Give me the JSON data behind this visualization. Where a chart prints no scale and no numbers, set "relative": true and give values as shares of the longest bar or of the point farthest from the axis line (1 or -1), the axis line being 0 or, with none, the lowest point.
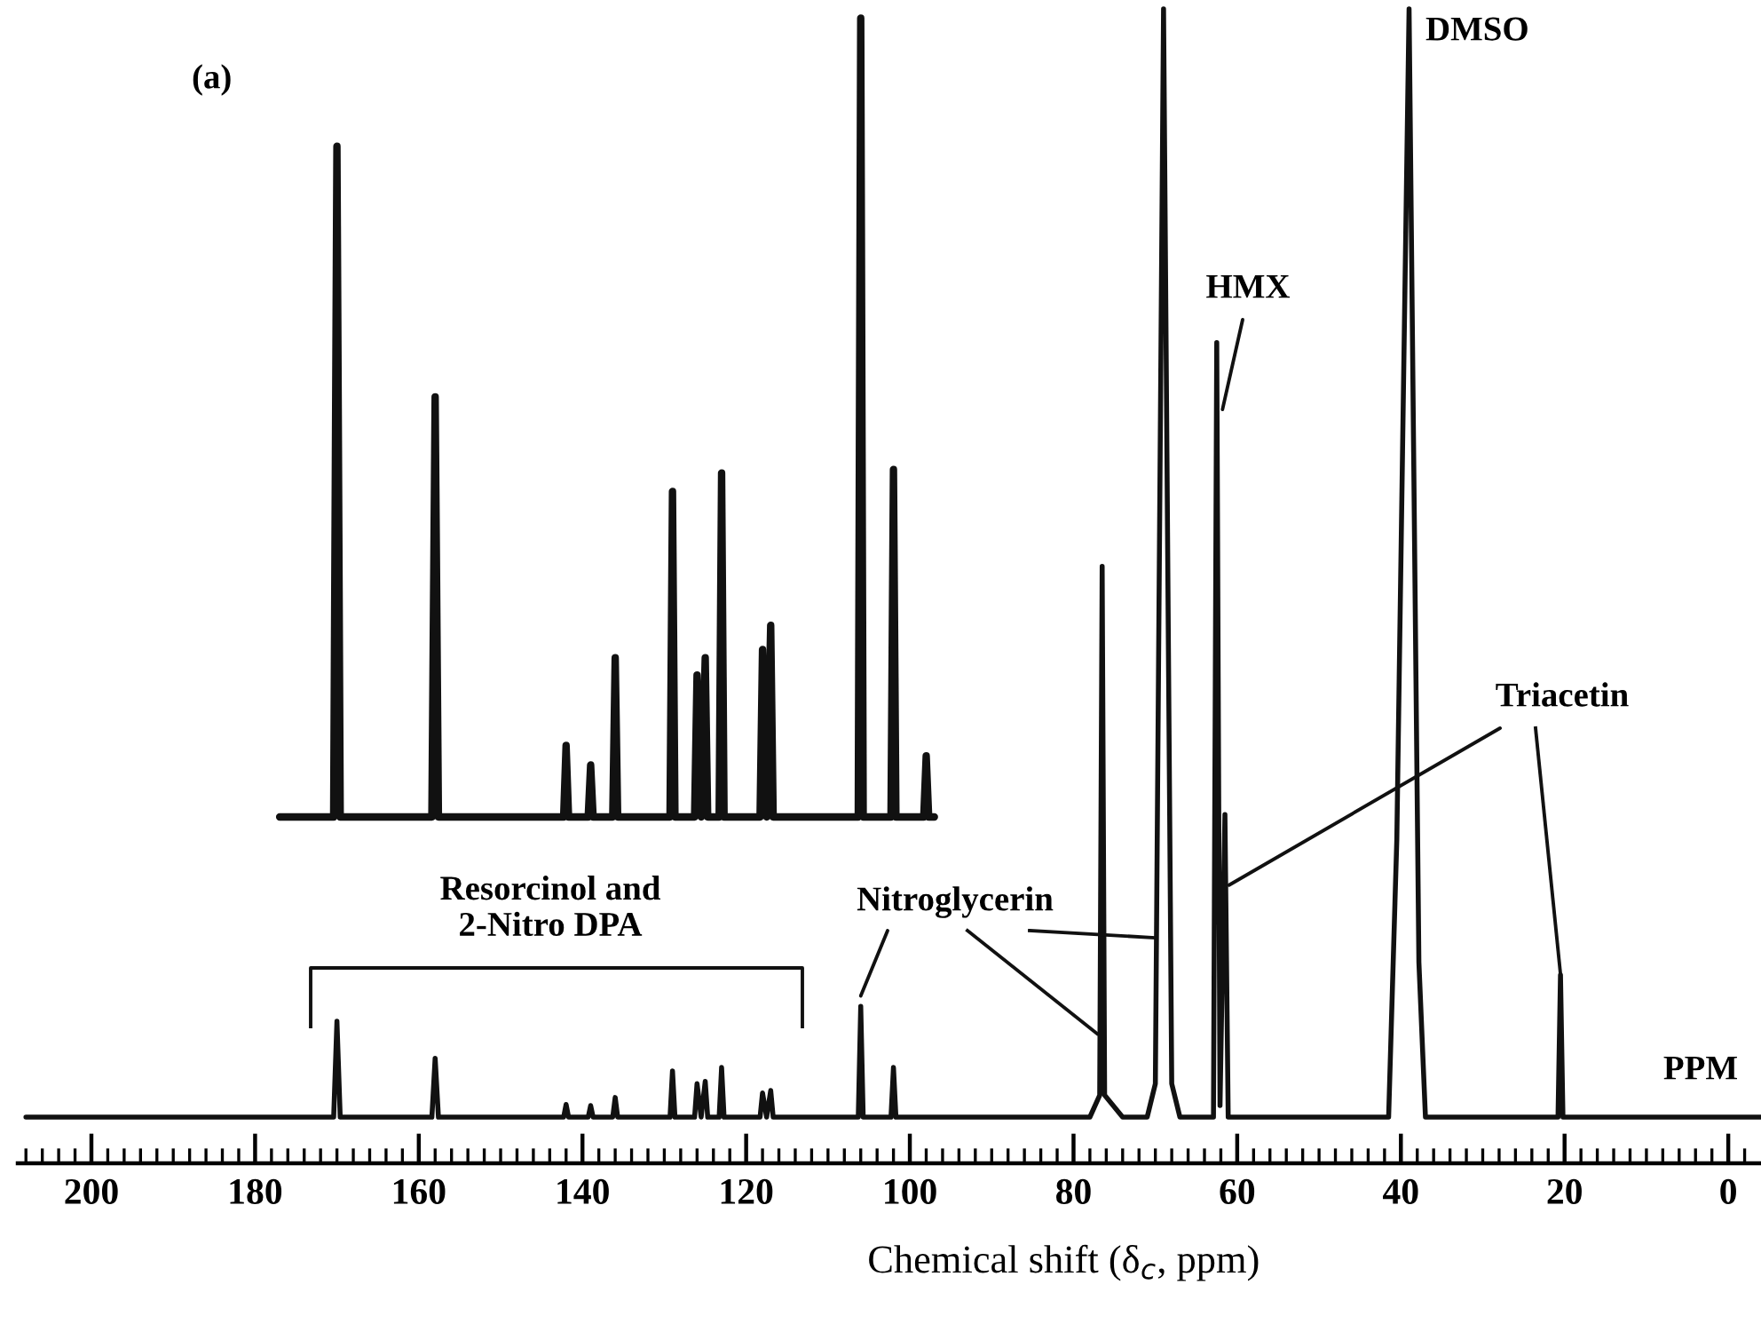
{
  "chart_data": {
    "type": "line",
    "relative": true,
    "xlabel": "Chemical shift (δ$_{c}$, ppm)",
    "xlim": [
      209,
      -4
    ],
    "tick_labels": "x",
    "xticks": [
      200,
      180,
      160,
      140,
      120,
      100,
      80,
      60,
      40,
      20,
      0,
      {
        "value": 208,
        "label": null
      },
      {
        "value": 206,
        "label": null
      },
      {
        "value": 204,
        "label": null
      },
      {
        "value": 202,
        "label": null
      },
      {
        "value": 198,
        "label": null
      },
      {
        "value": 196,
        "label": null
      },
      {
        "value": 194,
        "label": null
      },
      {
        "value": 192,
        "label": null
      },
      {
        "value": 190,
        "label": null
      },
      {
        "value": 188,
        "label": null
      },
      {
        "value": 186,
        "label": null
      },
      {
        "value": 184,
        "label": null
      },
      {
        "value": 182,
        "label": null
      },
      {
        "value": 178,
        "label": null
      },
      {
        "value": 176,
        "label": null
      },
      {
        "value": 174,
        "label": null
      },
      {
        "value": 172,
        "label": null
      },
      {
        "value": 170,
        "label": null
      },
      {
        "value": 168,
        "label": null
      },
      {
        "value": 166,
        "label": null
      },
      {
        "value": 164,
        "label": null
      },
      {
        "value": 162,
        "label": null
      },
      {
        "value": 158,
        "label": null
      },
      {
        "value": 156,
        "label": null
      },
      {
        "value": 154,
        "label": null
      },
      {
        "value": 152,
        "label": null
      },
      {
        "value": 150,
        "label": null
      },
      {
        "value": 148,
        "label": null
      },
      {
        "value": 146,
        "label": null
      },
      {
        "value": 144,
        "label": null
      },
      {
        "value": 142,
        "label": null
      },
      {
        "value": 138,
        "label": null
      },
      {
        "value": 136,
        "label": null
      },
      {
        "value": 134,
        "label": null
      },
      {
        "value": 132,
        "label": null
      },
      {
        "value": 130,
        "label": null
      },
      {
        "value": 128,
        "label": null
      },
      {
        "value": 126,
        "label": null
      },
      {
        "value": 124,
        "label": null
      },
      {
        "value": 122,
        "label": null
      },
      {
        "value": 118,
        "label": null
      },
      {
        "value": 116,
        "label": null
      },
      {
        "value": 114,
        "label": null
      },
      {
        "value": 112,
        "label": null
      },
      {
        "value": 110,
        "label": null
      },
      {
        "value": 108,
        "label": null
      },
      {
        "value": 106,
        "label": null
      },
      {
        "value": 104,
        "label": null
      },
      {
        "value": 102,
        "label": null
      },
      {
        "value": 98,
        "label": null
      },
      {
        "value": 96,
        "label": null
      },
      {
        "value": 94,
        "label": null
      },
      {
        "value": 92,
        "label": null
      },
      {
        "value": 90,
        "label": null
      },
      {
        "value": 88,
        "label": null
      },
      {
        "value": 86,
        "label": null
      },
      {
        "value": 84,
        "label": null
      },
      {
        "value": 82,
        "label": null
      },
      {
        "value": 78,
        "label": null
      },
      {
        "value": 76,
        "label": null
      },
      {
        "value": 74,
        "label": null
      },
      {
        "value": 72,
        "label": null
      },
      {
        "value": 70,
        "label": null
      },
      {
        "value": 68,
        "label": null
      },
      {
        "value": 66,
        "label": null
      },
      {
        "value": 64,
        "label": null
      },
      {
        "value": 62,
        "label": null
      },
      {
        "value": 58,
        "label": null
      },
      {
        "value": 56,
        "label": null
      },
      {
        "value": 54,
        "label": null
      },
      {
        "value": 52,
        "label": null
      },
      {
        "value": 50,
        "label": null
      },
      {
        "value": 48,
        "label": null
      },
      {
        "value": 46,
        "label": null
      },
      {
        "value": 44,
        "label": null
      },
      {
        "value": 42,
        "label": null
      },
      {
        "value": 38,
        "label": null
      },
      {
        "value": 36,
        "label": null
      },
      {
        "value": 34,
        "label": null
      },
      {
        "value": 32,
        "label": null
      },
      {
        "value": 30,
        "label": null
      },
      {
        "value": 28,
        "label": null
      },
      {
        "value": 26,
        "label": null
      },
      {
        "value": 24,
        "label": null
      },
      {
        "value": 22,
        "label": null
      },
      {
        "value": 18,
        "label": null
      },
      {
        "value": 16,
        "label": null
      },
      {
        "value": 14,
        "label": null
      },
      {
        "value": 12,
        "label": null
      },
      {
        "value": 10,
        "label": null
      },
      {
        "value": 8,
        "label": null
      },
      {
        "value": 6,
        "label": null
      },
      {
        "value": 4,
        "label": null
      },
      {
        "value": 2,
        "label": null
      },
      {
        "value": -2,
        "label": null
      }
    ],
    "x": [
      208,
      170.4,
      170,
      169.6,
      158.4,
      158,
      157.6,
      142.3,
      142,
      141.7,
      139.3,
      139,
      138.7,
      136.3,
      136,
      135.7,
      129.3,
      129,
      128.7,
      126.3,
      126,
      125.5,
      125,
      124.7,
      123.3,
      123,
      122.7,
      118.3,
      118,
      117.5,
      117,
      116.7,
      106.3,
      106,
      105.7,
      102.3,
      102,
      101.7,
      78,
      76.8,
      76.5,
      76.2,
      74,
      71,
      70,
      69,
      68,
      67,
      62.9,
      62.5,
      62.1,
      61.5,
      61.1,
      41.5,
      40.5,
      39,
      37.8,
      37,
      20.8,
      20.5,
      20.2,
      -4
    ],
    "series": [
      {
        "color": "#111111",
        "values": [
          0.04,
          0.04,
          0.123,
          0.04,
          0.04,
          0.091,
          0.04,
          0.04,
          0.051,
          0.04,
          0.04,
          0.05,
          0.04,
          0.04,
          0.057,
          0.04,
          0.04,
          0.08,
          0.04,
          0.04,
          0.069,
          0.04,
          0.071,
          0.04,
          0.04,
          0.083,
          0.04,
          0.04,
          0.061,
          0.04,
          0.063,
          0.04,
          0.04,
          0.136,
          0.04,
          0.04,
          0.083,
          0.04,
          0.04,
          0.059,
          0.517,
          0.059,
          0.04,
          0.04,
          0.069,
          1,
          0.069,
          0.04,
          0.04,
          0.711,
          0.05,
          0.302,
          0.04,
          0.04,
          0.28,
          1,
          0.174,
          0.04,
          0.04,
          0.163,
          0.04,
          0.04
        ]
      },
      {
        "color": "#111111",
        "x": [
          177,
          170.4,
          170,
          169.6,
          158.4,
          158,
          157.6,
          142.3,
          142,
          141.7,
          139.3,
          139,
          138.7,
          136.3,
          136,
          135.7,
          129.3,
          129,
          128.7,
          126.3,
          126,
          125.5,
          125,
          124.7,
          123.3,
          123,
          122.7,
          118.3,
          118,
          117.5,
          117,
          116.7,
          106.3,
          106,
          105.7,
          102.3,
          102,
          101.7,
          98.3,
          98,
          97.7,
          97
        ],
        "values": [
          0.3,
          0.3,
          0.881,
          0.3,
          0.3,
          0.664,
          0.3,
          0.3,
          0.362,
          0.3,
          0.3,
          0.345,
          0.3,
          0.3,
          0.438,
          0.3,
          0.3,
          0.582,
          0.3,
          0.3,
          0.423,
          0.3,
          0.438,
          0.3,
          0.3,
          0.598,
          0.3,
          0.3,
          0.445,
          0.3,
          0.466,
          0.3,
          0.3,
          0.992,
          0.3,
          0.3,
          0.601,
          0.3,
          0.3,
          0.353,
          0.3,
          0.3
        ]
      }
    ],
    "annotations": [
      "(a)",
      "DMSO",
      {
        "text": "HMX",
        "x": 61.8,
        "y": 0.653
      },
      {
        "text": "Triacetin",
        "x": 61,
        "y": 0.241
      },
      {
        "text": "Nitroglycerin",
        "x": 106,
        "y": 0.145
      },
      "Resorcinol and\n2-Nitro DPA",
      "PPM"
    ]
  }
}
